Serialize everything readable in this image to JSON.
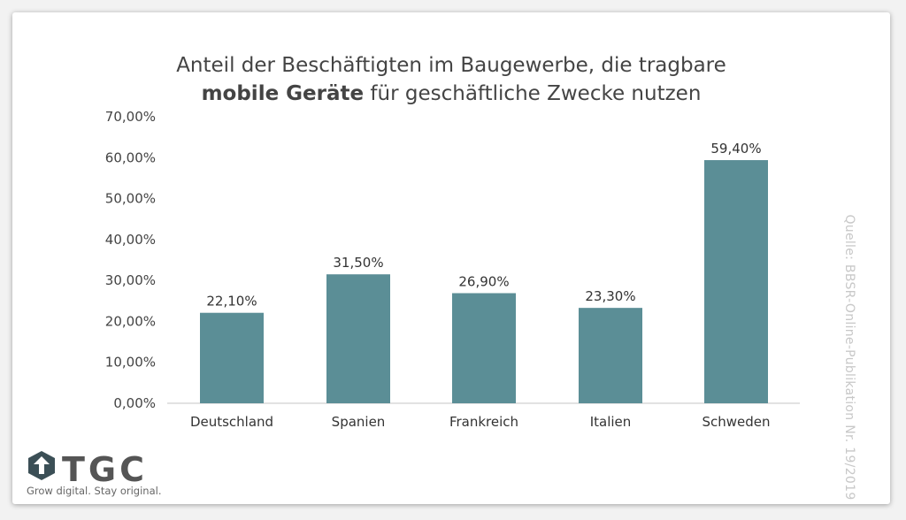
{
  "chart_data": {
    "type": "bar",
    "title_line1": "Anteil der Beschäftigten im Baugewerbe, die tragbare",
    "title_line2_bold": "mobile Geräte",
    "title_line2_rest": " für geschäftliche Zwecke nutzen",
    "categories": [
      "Deutschland",
      "Spanien",
      "Frankreich",
      "Italien",
      "Schweden"
    ],
    "values": [
      22.1,
      31.5,
      26.9,
      23.3,
      59.4
    ],
    "value_labels": [
      "22,10%",
      "31,50%",
      "26,90%",
      "23,30%",
      "59,40%"
    ],
    "y_ticks": [
      0,
      10,
      20,
      30,
      40,
      50,
      60,
      70
    ],
    "y_tick_labels": [
      "0,00%",
      "10,00%",
      "20,00%",
      "30,00%",
      "40,00%",
      "50,00%",
      "60,00%",
      "70,00%"
    ],
    "ylim": [
      0,
      70
    ],
    "grid": false,
    "bar_color": "#5b8e96"
  },
  "source": "Quelle: BBSR-Online-Publikation Nr. 19/2019",
  "logo": {
    "text": "TGC",
    "tagline": "Grow digital. Stay original."
  }
}
